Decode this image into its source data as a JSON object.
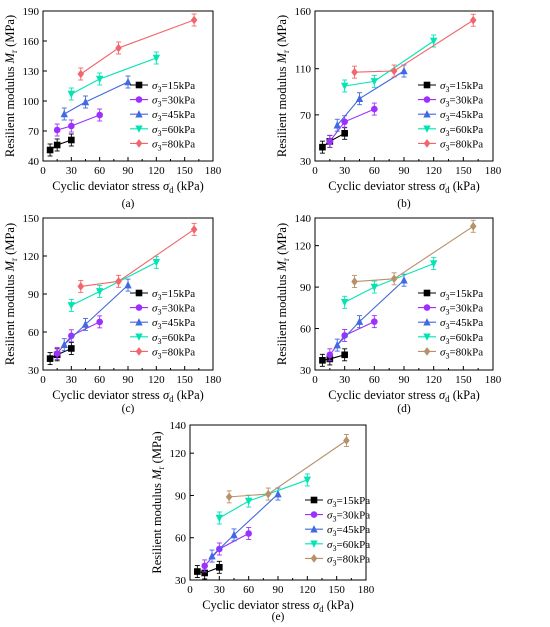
{
  "colors": {
    "s15": "#000000",
    "s30": "#9b30ff",
    "s45": "#4169e1",
    "s60": "#00e5b3",
    "s80_red": "#f2666a",
    "s80_brown": "#b8906a"
  },
  "chart_data": [
    {
      "type": "line",
      "panel_label": "(a)",
      "xlabel": "Cyclic deviator stress σd (kPa)",
      "ylabel": "Resilient modulus Mr (MPa)",
      "xlim": [
        0,
        180
      ],
      "ylim": [
        40,
        190
      ],
      "xticks": [
        "0",
        "30",
        "60",
        "90",
        "120",
        "150",
        "180"
      ],
      "yticks": [
        "40",
        "70",
        "100",
        "130",
        "160",
        "190"
      ],
      "legend_position": "right",
      "series": [
        {
          "name": "σ3=15kPa",
          "marker": "square",
          "color_key": "s15",
          "x": [
            7.5,
            15,
            30
          ],
          "y": [
            51,
            56,
            61
          ]
        },
        {
          "name": "σ3=30kPa",
          "marker": "circle",
          "color_key": "s30",
          "x": [
            15,
            30,
            60
          ],
          "y": [
            71,
            75,
            86
          ]
        },
        {
          "name": "σ3=45kPa",
          "marker": "triangle-up",
          "color_key": "s45",
          "x": [
            22.5,
            45,
            90
          ],
          "y": [
            87,
            99,
            119
          ]
        },
        {
          "name": "σ3=60kPa",
          "marker": "triangle-down",
          "color_key": "s60",
          "x": [
            30,
            60,
            120
          ],
          "y": [
            107,
            122,
            143
          ]
        },
        {
          "name": "σ3=80kPa",
          "marker": "diamond",
          "color_key": "s80_red",
          "x": [
            40,
            80,
            160
          ],
          "y": [
            127,
            153,
            181
          ]
        }
      ]
    },
    {
      "type": "line",
      "panel_label": "(b)",
      "xlabel": "Cyclic deviator stress σd (kPa)",
      "ylabel": "Resilient modulus Mr (MPa)",
      "xlim": [
        0,
        180
      ],
      "ylim": [
        30,
        160
      ],
      "xticks": [
        "0",
        "30",
        "60",
        "90",
        "120",
        "150",
        "180"
      ],
      "yticks": [
        "30",
        "70",
        "110",
        "160"
      ],
      "ytick_values": [
        30,
        70,
        110,
        160
      ],
      "legend_position": "right",
      "series": [
        {
          "name": "σ3=15kPa",
          "marker": "square",
          "color_key": "s15",
          "x": [
            7.5,
            15,
            30
          ],
          "y": [
            42,
            47,
            54
          ]
        },
        {
          "name": "σ3=30kPa",
          "marker": "circle",
          "color_key": "s30",
          "x": [
            15,
            30,
            60
          ],
          "y": [
            47,
            64,
            75
          ]
        },
        {
          "name": "σ3=45kPa",
          "marker": "triangle-up",
          "color_key": "s45",
          "x": [
            22.5,
            45,
            90
          ],
          "y": [
            61,
            84,
            108
          ]
        },
        {
          "name": "σ3=60kPa",
          "marker": "triangle-down",
          "color_key": "s60",
          "x": [
            30,
            60,
            120
          ],
          "y": [
            95,
            99,
            134
          ]
        },
        {
          "name": "σ3=80kPa",
          "marker": "diamond",
          "color_key": "s80_red",
          "x": [
            40,
            80,
            160
          ],
          "y": [
            107,
            108,
            152
          ]
        }
      ]
    },
    {
      "type": "line",
      "panel_label": "(c)",
      "xlabel": "Cyclic deviator stress σd (kPa)",
      "ylabel": "Resilient modulus Mr (MPa)",
      "xlim": [
        0,
        180
      ],
      "ylim": [
        30,
        150
      ],
      "xticks": [
        "0",
        "30",
        "60",
        "90",
        "120",
        "150",
        "180"
      ],
      "yticks": [
        "30",
        "60",
        "90",
        "120",
        "150"
      ],
      "legend_position": "right",
      "series": [
        {
          "name": "σ3=15kPa",
          "marker": "square",
          "color_key": "s15",
          "x": [
            7.5,
            15,
            30
          ],
          "y": [
            39,
            42,
            47
          ]
        },
        {
          "name": "σ3=30kPa",
          "marker": "circle",
          "color_key": "s30",
          "x": [
            15,
            30,
            60
          ],
          "y": [
            43,
            57,
            68
          ]
        },
        {
          "name": "σ3=45kPa",
          "marker": "triangle-up",
          "color_key": "s45",
          "x": [
            22.5,
            45,
            90
          ],
          "y": [
            50,
            66,
            97
          ]
        },
        {
          "name": "σ3=60kPa",
          "marker": "triangle-down",
          "color_key": "s60",
          "x": [
            30,
            60,
            120
          ],
          "y": [
            81,
            92,
            115
          ]
        },
        {
          "name": "σ3=80kPa",
          "marker": "diamond",
          "color_key": "s80_red",
          "x": [
            40,
            80,
            160
          ],
          "y": [
            96,
            100,
            141
          ]
        }
      ]
    },
    {
      "type": "line",
      "panel_label": "(d)",
      "xlabel": "Cyclic deviator stress σd (kPa)",
      "ylabel": "Resilient modulus Mr (MPa)",
      "xlim": [
        0,
        180
      ],
      "ylim": [
        30,
        140
      ],
      "xticks": [
        "0",
        "30",
        "60",
        "90",
        "120",
        "150",
        "180"
      ],
      "yticks": [
        "30",
        "60",
        "90",
        "120",
        "140"
      ],
      "ytick_values": [
        30,
        60,
        90,
        120,
        140
      ],
      "legend_position": "right",
      "series": [
        {
          "name": "σ3=15kPa",
          "marker": "square",
          "color_key": "s15",
          "x": [
            7.5,
            15,
            30
          ],
          "y": [
            37,
            38,
            41
          ]
        },
        {
          "name": "σ3=30kPa",
          "marker": "circle",
          "color_key": "s30",
          "x": [
            15,
            30,
            60
          ],
          "y": [
            41,
            55,
            65
          ]
        },
        {
          "name": "σ3=45kPa",
          "marker": "triangle-up",
          "color_key": "s45",
          "x": [
            22.5,
            45,
            90
          ],
          "y": [
            48,
            65,
            95
          ]
        },
        {
          "name": "σ3=60kPa",
          "marker": "triangle-down",
          "color_key": "s60",
          "x": [
            30,
            60,
            120
          ],
          "y": [
            79,
            90,
            107
          ]
        },
        {
          "name": "σ3=80kPa",
          "marker": "diamond",
          "color_key": "s80_brown",
          "x": [
            40,
            80,
            160
          ],
          "y": [
            94,
            96,
            134
          ]
        }
      ]
    },
    {
      "type": "line",
      "panel_label": "(e)",
      "xlabel": "Cyclic deviator stress σd (kPa)",
      "ylabel": "Resilient modulus Mr (MPa)",
      "xlim": [
        0,
        180
      ],
      "ylim": [
        30,
        140
      ],
      "xticks": [
        "0",
        "30",
        "60",
        "90",
        "120",
        "150",
        "180"
      ],
      "yticks": [
        "30",
        "60",
        "90",
        "120",
        "140"
      ],
      "ytick_values": [
        30,
        60,
        90,
        120,
        140
      ],
      "legend_position": "right",
      "series": [
        {
          "name": "σ3=15kPa",
          "marker": "square",
          "color_key": "s15",
          "x": [
            7.5,
            15,
            30
          ],
          "y": [
            36,
            35,
            39
          ]
        },
        {
          "name": "σ3=30kPa",
          "marker": "circle",
          "color_key": "s30",
          "x": [
            15,
            30,
            60
          ],
          "y": [
            40,
            52,
            63
          ]
        },
        {
          "name": "σ3=45kPa",
          "marker": "triangle-up",
          "color_key": "s45",
          "x": [
            22.5,
            45,
            90
          ],
          "y": [
            47,
            62,
            91
          ]
        },
        {
          "name": "σ3=60kPa",
          "marker": "triangle-down",
          "color_key": "s60",
          "x": [
            30,
            60,
            120
          ],
          "y": [
            74,
            86,
            101
          ]
        },
        {
          "name": "σ3=80kPa",
          "marker": "diamond",
          "color_key": "s80_brown",
          "x": [
            40,
            80,
            160
          ],
          "y": [
            89,
            91,
            129
          ]
        }
      ]
    }
  ]
}
